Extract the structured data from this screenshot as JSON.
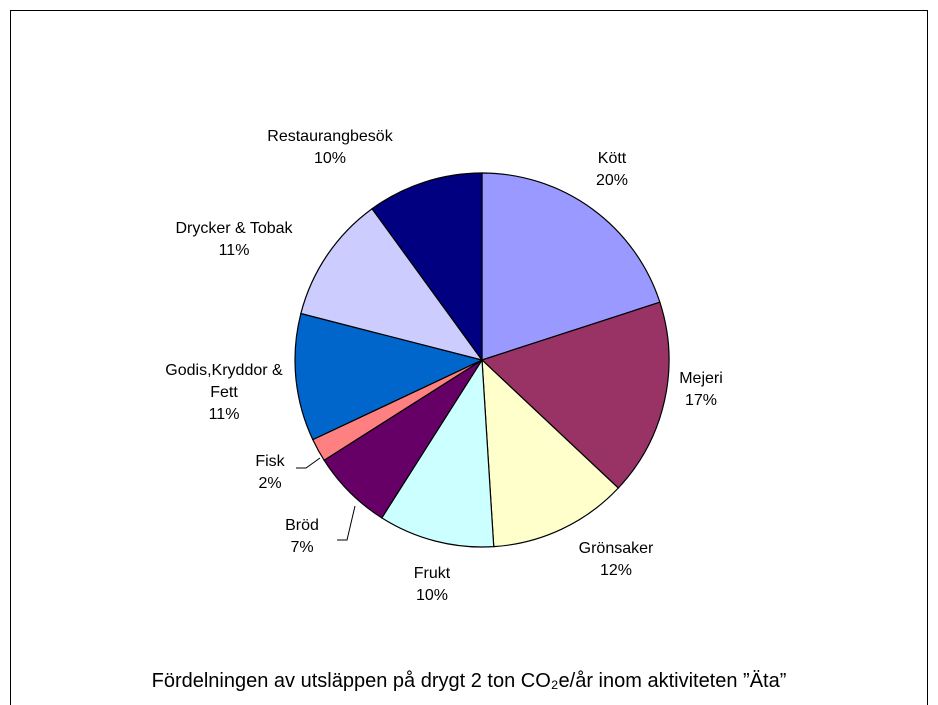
{
  "chart_data": {
    "type": "pie",
    "title": "Fördelningen av utsläppen på drygt 2 ton CO₂e/år inom aktiviteten ”Äta”",
    "categories": [
      "Kött",
      "Mejeri",
      "Grönsaker",
      "Frukt",
      "Bröd",
      "Fisk",
      "Godis,Kryddor & Fett",
      "Drycker & Tobak",
      "Restaurangbesök"
    ],
    "values": [
      20,
      17,
      12,
      10,
      7,
      2,
      11,
      11,
      10
    ],
    "value_labels": [
      "20%",
      "17%",
      "12%",
      "10%",
      "7%",
      "2%",
      "11%",
      "11%",
      "10%"
    ],
    "colors": [
      "#9999ff",
      "#993366",
      "#ffffcc",
      "#ccffff",
      "#660066",
      "#ff8080",
      "#0066cc",
      "#ccccff",
      "#000080"
    ]
  }
}
